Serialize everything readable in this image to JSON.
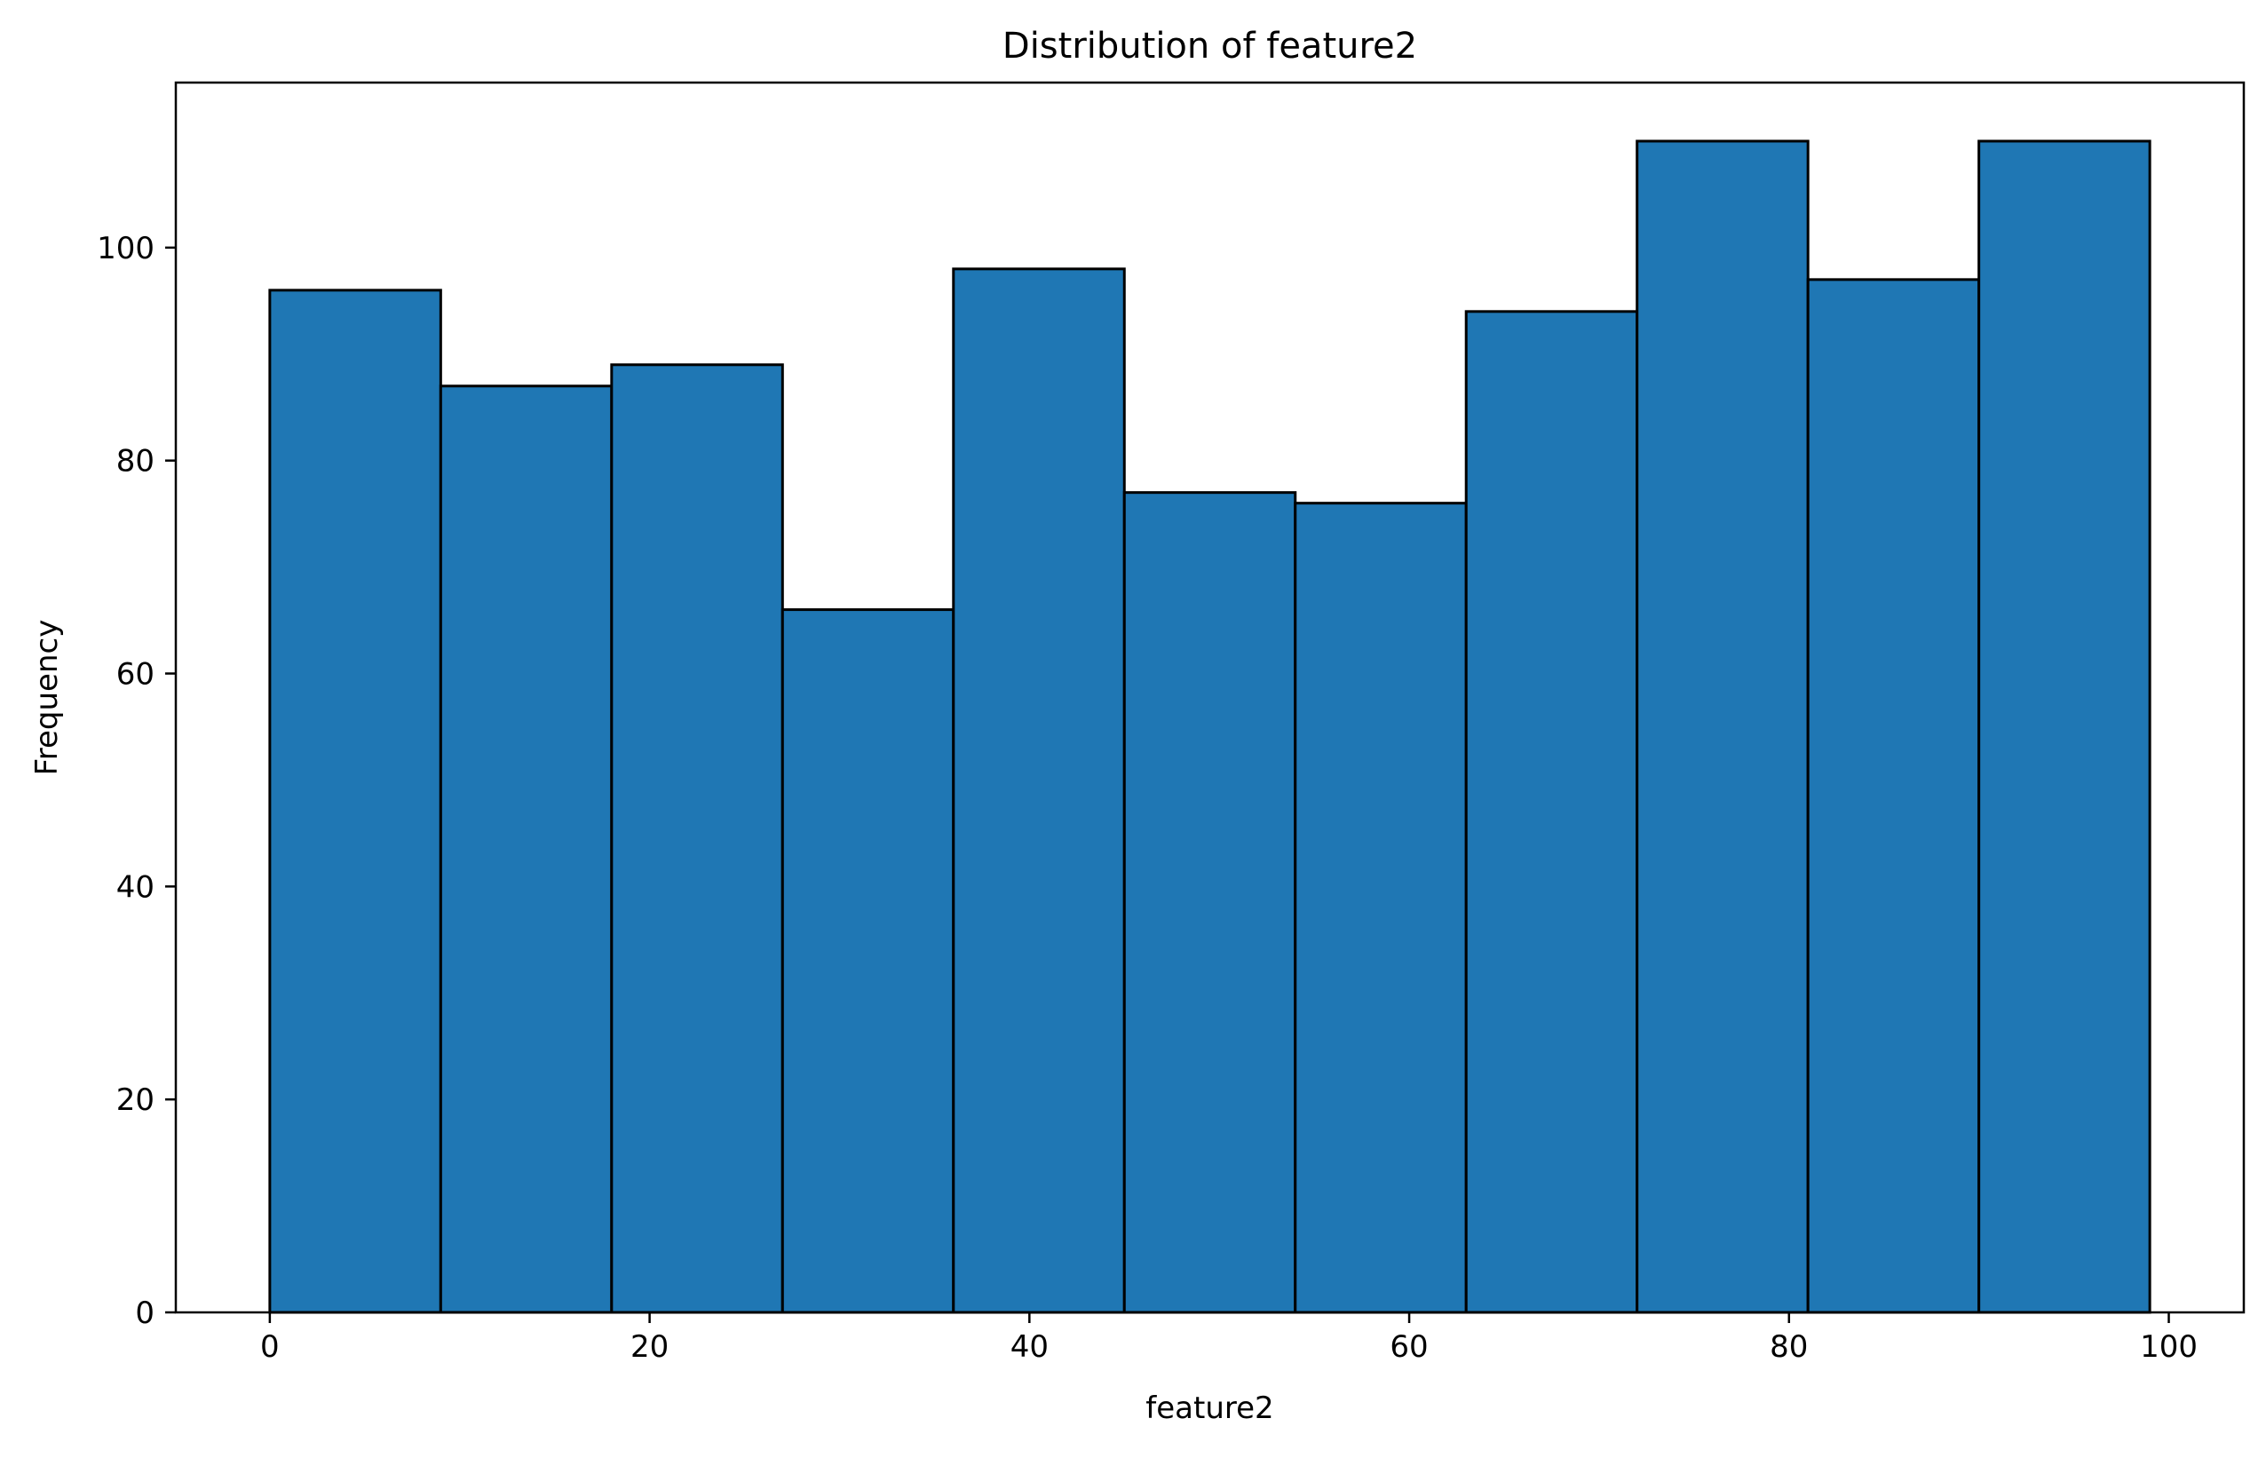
{
  "chart_data": {
    "type": "bar",
    "title": "Distribution of feature2",
    "xlabel": "feature2",
    "ylabel": "Frequency",
    "bins": [
      {
        "start": 0,
        "end": 9,
        "count": 96
      },
      {
        "start": 9,
        "end": 18,
        "count": 87
      },
      {
        "start": 18,
        "end": 27,
        "count": 89
      },
      {
        "start": 27,
        "end": 36,
        "count": 66
      },
      {
        "start": 36,
        "end": 45,
        "count": 98
      },
      {
        "start": 45,
        "end": 54,
        "count": 77
      },
      {
        "start": 54,
        "end": 63,
        "count": 76
      },
      {
        "start": 63,
        "end": 72,
        "count": 94
      },
      {
        "start": 72,
        "end": 81,
        "count": 110
      },
      {
        "start": 81,
        "end": 90,
        "count": 97
      },
      {
        "start": 90,
        "end": 99,
        "count": 110
      }
    ],
    "xlim": [
      -4.95,
      103.95
    ],
    "ylim": [
      0,
      115.5
    ],
    "xticks": [
      0,
      20,
      40,
      60,
      80,
      100
    ],
    "yticks": [
      0,
      20,
      40,
      60,
      80,
      100
    ],
    "bar_color": "#1f77b4",
    "edge_color": "#000000",
    "grid": false
  }
}
